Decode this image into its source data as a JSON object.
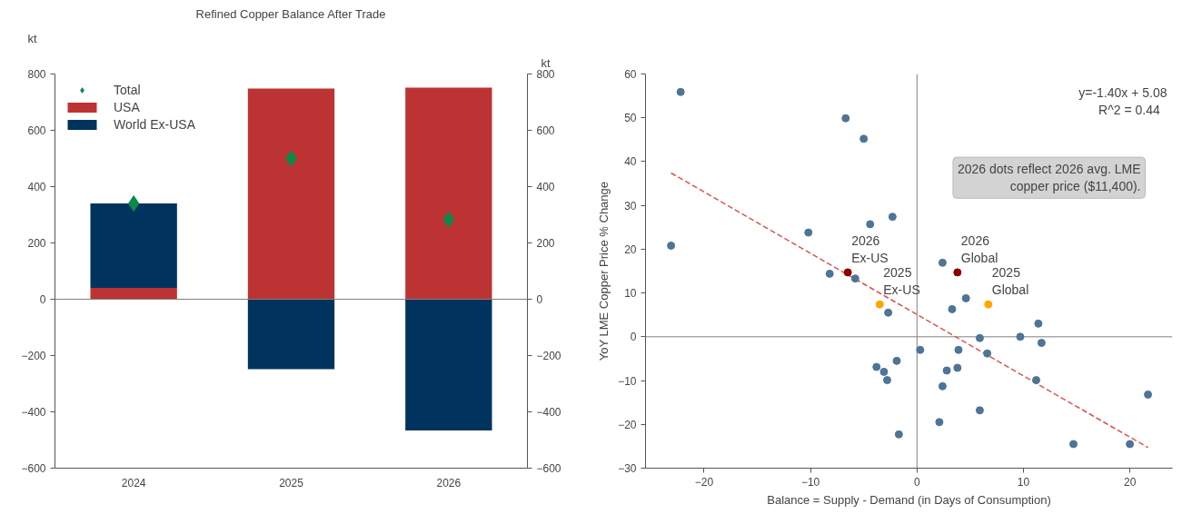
{
  "chart_data": [
    {
      "type": "bar",
      "title": "Refined Copper Balance After Trade",
      "ylabel": "kt",
      "y2label": "kt",
      "stacked": true,
      "categories": [
        "2024",
        "2025",
        "2026"
      ],
      "series": [
        {
          "name": "Total",
          "type": "scatter",
          "marker": "diamond",
          "color": "#0b8a4a",
          "values": [
            340,
            500,
            283
          ]
        },
        {
          "name": "USA",
          "color": "#bd3333",
          "values": [
            40,
            748,
            752
          ]
        },
        {
          "name": "World Ex-USA",
          "color": "#00335e",
          "values": [
            300,
            -248,
            -466
          ]
        }
      ],
      "ylim": [
        -600,
        800
      ],
      "yticks": [
        {
          "value": -600,
          "label": "−600"
        },
        {
          "value": -400,
          "label": "−400"
        },
        {
          "value": -200,
          "label": "−200"
        },
        0,
        200,
        400,
        600,
        800
      ],
      "y2lim": [
        -600,
        800
      ],
      "y2ticks": [
        {
          "value": -600,
          "label": "−600"
        },
        {
          "value": -400,
          "label": "−400"
        },
        {
          "value": -200,
          "label": "−200"
        },
        0,
        200,
        400,
        600,
        800
      ],
      "ref_lines": [
        {
          "axis": "y",
          "value": 0,
          "color": "#808080"
        }
      ],
      "legend": "top left",
      "grid": false
    },
    {
      "type": "scatter",
      "xlabel": "Balance = Supply - Demand (in Days of Consumption)",
      "ylabel": "YoY LME Copper Price % Change",
      "marker": "circle",
      "series": [
        {
          "color": "#4e7496",
          "x": [
            -22.2,
            -23.1,
            -6.7,
            -5.0,
            -10.2,
            -4.4,
            -2.3,
            -8.2,
            -5.8,
            2.4,
            -2.7,
            3.3,
            4.6,
            11.4,
            5.9,
            9.7,
            11.7,
            0.3,
            3.9,
            6.6,
            -1.9,
            -3.8,
            -3.1,
            -2.8,
            2.8,
            3.8,
            2.4,
            11.2,
            21.7,
            5.9,
            2.1,
            -1.7,
            14.7,
            20.0
          ],
          "values": [
            55.9,
            20.8,
            49.9,
            45.2,
            23.8,
            25.7,
            27.4,
            14.4,
            13.3,
            16.9,
            5.5,
            6.3,
            8.8,
            3.0,
            -0.3,
            0,
            -1.4,
            -3.0,
            -3.0,
            -3.8,
            -5.5,
            -6.9,
            -8.0,
            -9.9,
            -7.7,
            -7.1,
            -11.3,
            -9.9,
            -13.2,
            -16.8,
            -19.5,
            -22.3,
            -24.5,
            -24.5
          ]
        },
        {
          "color": "#8b0000",
          "x": [
            -6.5,
            3.8
          ],
          "values": [
            14.7,
            14.7
          ]
        },
        {
          "color": "#ffa500",
          "x": [
            -3.5,
            6.7
          ],
          "values": [
            7.4,
            7.4
          ]
        },
        {
          "type": "line",
          "marker": "none",
          "line_style": "dashed",
          "color": "#d9534f",
          "x": [
            -23.1,
            21.7
          ],
          "values": [
            37.4,
            -25.3
          ]
        }
      ],
      "xlim": [
        -25.5,
        24
      ],
      "xticks": [
        {
          "value": -20,
          "label": "−20"
        },
        {
          "value": -10,
          "label": "−10"
        },
        0,
        10,
        20
      ],
      "ylim": [
        -30,
        60
      ],
      "yticks": [
        {
          "value": -30,
          "label": "−30"
        },
        {
          "value": -20,
          "label": "−20"
        },
        {
          "value": -10,
          "label": "−10"
        },
        0,
        10,
        20,
        30,
        40,
        50,
        60
      ],
      "ref_lines": [
        {
          "axis": "x",
          "value": 0,
          "color": "#808080"
        },
        {
          "axis": "y",
          "value": 0,
          "color": "#808080"
        }
      ],
      "annotations": [
        "y=-1.40x + 5.08\n R^2 =  0.44",
        "2026 dots reflect 2026 avg. LME\ncopper price ($11,400).",
        {
          "text": "2026\nEx-US",
          "x": -6.5,
          "y": 14.7
        },
        {
          "text": "2026\nGlobal",
          "x": 3.8,
          "y": 14.7
        },
        {
          "text": "2025\nEx-US",
          "x": -3.5,
          "y": 7.4
        },
        {
          "text": "2025\nGlobal",
          "x": 6.7,
          "y": 7.4
        }
      ],
      "grid": false
    }
  ]
}
